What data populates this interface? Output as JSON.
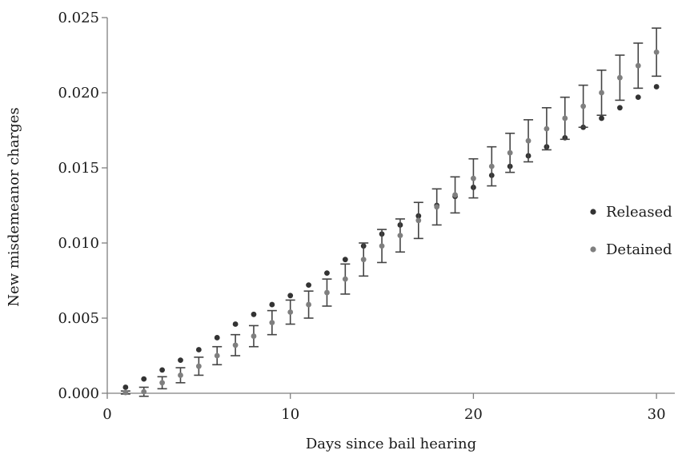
{
  "chart_data": {
    "type": "scatter",
    "title": "",
    "xlabel": "Days since bail hearing",
    "ylabel": "New misdemeanor charges",
    "xlim": [
      0,
      31
    ],
    "ylim": [
      0,
      0.025
    ],
    "xticks": [
      0,
      10,
      20,
      30
    ],
    "xtick_labels": [
      "0",
      "10",
      "20",
      "30"
    ],
    "yticks": [
      0,
      0.005,
      0.01,
      0.015,
      0.02,
      0.025
    ],
    "ytick_labels": [
      "0.000",
      "0.005",
      "0.010",
      "0.015",
      "0.020",
      "0.025"
    ],
    "grid": false,
    "legend_position": "right",
    "x": [
      1,
      2,
      3,
      4,
      5,
      6,
      7,
      8,
      9,
      10,
      11,
      12,
      13,
      14,
      15,
      16,
      17,
      18,
      19,
      20,
      21,
      22,
      23,
      24,
      25,
      26,
      27,
      28,
      29,
      30
    ],
    "series": [
      {
        "name": "Released",
        "color": "#333333",
        "values": [
          0.0004,
          0.00095,
          0.00155,
          0.0022,
          0.0029,
          0.0037,
          0.0046,
          0.00525,
          0.0059,
          0.0065,
          0.0072,
          0.008,
          0.0089,
          0.0098,
          0.0106,
          0.0112,
          0.0118,
          0.0125,
          0.0131,
          0.0137,
          0.0145,
          0.0151,
          0.0158,
          0.0164,
          0.017,
          0.0177,
          0.0183,
          0.019,
          0.0197,
          0.0204
        ]
      },
      {
        "name": "Detained",
        "color": "#7f7f7f",
        "values": [
          5e-05,
          0.0001,
          0.0007,
          0.0012,
          0.0018,
          0.0025,
          0.0032,
          0.0038,
          0.0047,
          0.0054,
          0.0059,
          0.0067,
          0.0076,
          0.0089,
          0.0098,
          0.0105,
          0.0115,
          0.0124,
          0.0132,
          0.0143,
          0.0151,
          0.016,
          0.0168,
          0.0176,
          0.0183,
          0.0191,
          0.02,
          0.021,
          0.0218,
          0.0227
        ],
        "error": [
          0.0001,
          0.0003,
          0.0004,
          0.0005,
          0.0006,
          0.0006,
          0.0007,
          0.0007,
          0.0008,
          0.0008,
          0.0009,
          0.0009,
          0.001,
          0.0011,
          0.0011,
          0.0011,
          0.0012,
          0.0012,
          0.0012,
          0.0013,
          0.0013,
          0.0013,
          0.0014,
          0.0014,
          0.0014,
          0.0014,
          0.0015,
          0.0015,
          0.0015,
          0.0016
        ]
      }
    ]
  }
}
